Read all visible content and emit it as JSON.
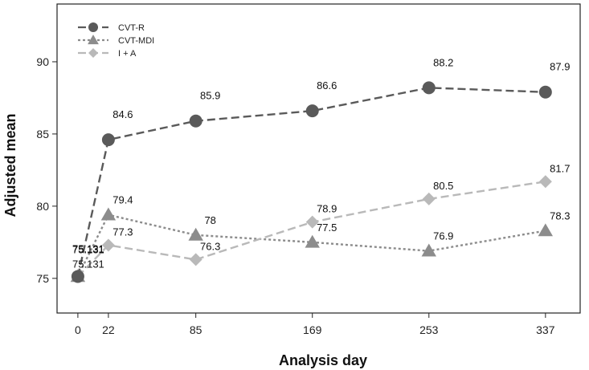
{
  "chart_data": {
    "type": "line",
    "xlabel": "Analysis day",
    "ylabel": "Adjusted mean",
    "x": [
      0,
      22,
      85,
      169,
      253,
      337
    ],
    "x_tick_labels": [
      "0",
      "22",
      "85",
      "169",
      "253",
      "337"
    ],
    "y_ticks": [
      75,
      80,
      85,
      90
    ],
    "y_tick_labels": [
      "75",
      "80",
      "85",
      "90"
    ],
    "xlim": [
      -15,
      362
    ],
    "ylim": [
      72.6,
      94
    ],
    "grid": false,
    "legend_position": "top-left",
    "series": [
      {
        "name": "CVT-R",
        "values": [
          75.131,
          84.6,
          85.9,
          86.6,
          88.2,
          87.9
        ],
        "labels": [
          "75.131",
          "84.6",
          "85.9",
          "86.6",
          "88.2",
          "87.9"
        ],
        "color": "#5a5a5a",
        "marker": "circle",
        "line_style": "dashed"
      },
      {
        "name": "CVT-MDI",
        "values": [
          75.131,
          79.4,
          78,
          77.5,
          76.9,
          78.3
        ],
        "labels": [
          "75.131",
          "79.4",
          "78",
          "77.5",
          "76.9",
          "78.3"
        ],
        "color": "#8c8c8c",
        "marker": "triangle",
        "line_style": "dotted"
      },
      {
        "name": "I + A",
        "values": [
          75.131,
          77.3,
          76.3,
          78.9,
          80.5,
          81.7
        ],
        "labels": [
          "75.131",
          "77.3",
          "76.3",
          "78.9",
          "80.5",
          "81.7"
        ],
        "color": "#b9b9b9",
        "marker": "diamond",
        "line_style": "dashed"
      }
    ]
  }
}
